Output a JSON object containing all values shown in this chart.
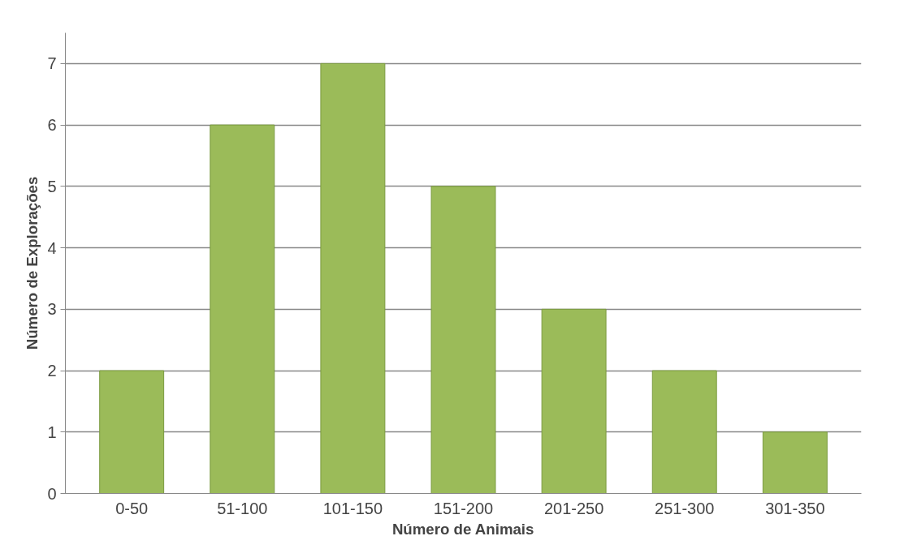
{
  "chart_data": {
    "type": "bar",
    "xlabel": "Número de Animais",
    "ylabel": "Número de Explorações",
    "categories": [
      "0-50",
      "51-100",
      "101-150",
      "151-200",
      "201-250",
      "251-300",
      "301-350"
    ],
    "values": [
      2,
      6,
      7,
      5,
      3,
      2,
      1
    ],
    "color": "#9bbb59",
    "ylim": [
      0,
      7.5
    ],
    "yticks": [
      0,
      1,
      2,
      3,
      4,
      5,
      6,
      7
    ],
    "grid": "y"
  }
}
